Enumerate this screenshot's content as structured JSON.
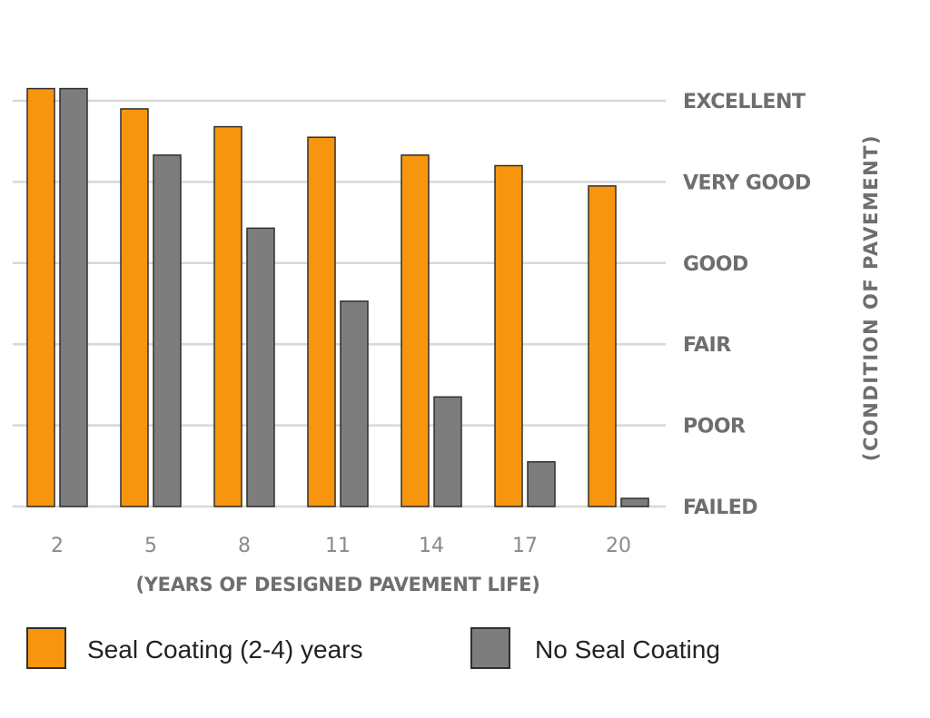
{
  "colors": {
    "seal": "#F7960E",
    "no_seal": "#7D7D7D",
    "outline": "#2f2f2f",
    "grid": "#d7d7d7"
  },
  "chart_data": {
    "type": "bar",
    "title": "",
    "xlabel": "(YEARS OF DESIGNED PAVEMENT LIFE)",
    "ylabel": "(CONDITION OF PAVEMENT)",
    "categories": [
      "2",
      "5",
      "8",
      "11",
      "14",
      "17",
      "20"
    ],
    "y_levels": [
      "FAILED",
      "POOR",
      "FAIR",
      "GOOD",
      "VERY GOOD",
      "EXCELLENT"
    ],
    "ylim": [
      0,
      5
    ],
    "series": [
      {
        "name": "Seal Coating (2-4) years",
        "color": "#F7960E",
        "values": [
          5.15,
          4.9,
          4.68,
          4.55,
          4.33,
          4.2,
          3.95
        ]
      },
      {
        "name": "No Seal Coating",
        "color": "#7D7D7D",
        "values": [
          5.15,
          4.33,
          3.43,
          2.53,
          1.35,
          0.55,
          0.1
        ]
      }
    ],
    "legend_position": "bottom-left"
  }
}
